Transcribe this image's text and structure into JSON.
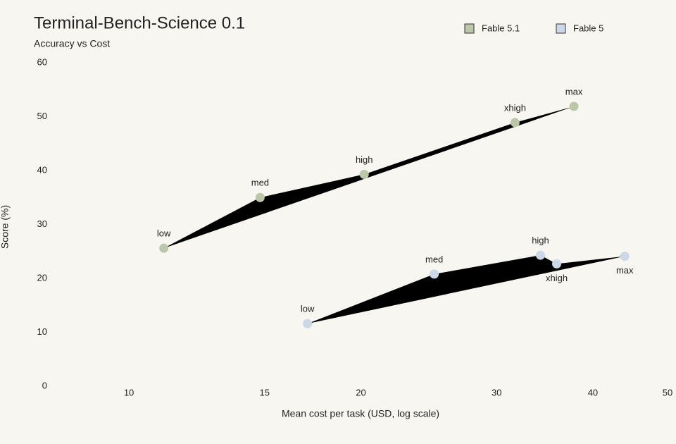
{
  "chart_data": {
    "type": "scatter",
    "title": "Terminal-Bench-Science 0.1",
    "subtitle": "Accuracy vs Cost",
    "x_label": "Mean cost per task (USD, log scale)",
    "y_label": "Score (%)",
    "x_scale": "log",
    "xlim": [
      8,
      50
    ],
    "xticks": [
      10,
      15,
      20,
      30,
      40,
      50
    ],
    "ylim": [
      0,
      60
    ],
    "yticks": [
      0,
      10,
      20,
      30,
      40,
      50,
      60
    ],
    "grid": false,
    "legend": "top-right",
    "series": [
      {
        "name": "Fable 5.1",
        "color": "#bcc7a9",
        "point_labels": [
          "low",
          "med",
          "high",
          "xhigh",
          "max"
        ],
        "x": [
          11.1,
          14.8,
          20.2,
          31.7,
          37.8
        ],
        "values": [
          25.6,
          35.0,
          39.3,
          48.9,
          51.9
        ]
      },
      {
        "name": "Fable 5",
        "color": "#cdd8e7",
        "point_labels": [
          "low",
          "med",
          "high",
          "xhigh",
          "max"
        ],
        "x": [
          17.05,
          24.9,
          34.2,
          35.9,
          44.0
        ],
        "values": [
          11.6,
          20.8,
          24.3,
          22.7,
          24.1
        ]
      }
    ]
  }
}
